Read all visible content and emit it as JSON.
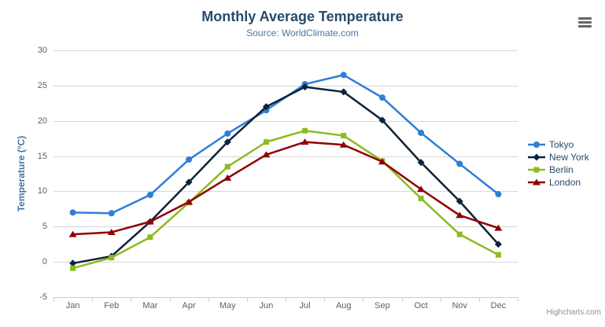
{
  "icons": {
    "export_menu": "hamburger-icon"
  },
  "credits": {
    "label": "Highcharts.com"
  },
  "colors": {
    "title": "#274b6d",
    "subtitle": "#4d759e",
    "axis_label": "#606060",
    "y_axis_title": "#4572a7",
    "grid_line": "#d8d8d8",
    "axis_line": "#c0d0e0",
    "legend_text": "#274b6d",
    "credits_text": "#909090",
    "export_icon": "#666666"
  },
  "chart_data": {
    "type": "line",
    "title": "Monthly Average Temperature",
    "subtitle": "Source: WorldClimate.com",
    "categories": [
      "Jan",
      "Feb",
      "Mar",
      "Apr",
      "May",
      "Jun",
      "Jul",
      "Aug",
      "Sep",
      "Oct",
      "Nov",
      "Dec"
    ],
    "xlabel": "",
    "ylabel": "Temperature (°C)",
    "ylim": [
      -5,
      30
    ],
    "ytick_interval": 5,
    "yticks": [
      -5,
      0,
      5,
      10,
      15,
      20,
      25,
      30
    ],
    "grid": true,
    "legend_position": "right",
    "series": [
      {
        "name": "Tokyo",
        "color": "#2f7ed8",
        "marker": "circle",
        "values": [
          7.0,
          6.9,
          9.5,
          14.5,
          18.2,
          21.5,
          25.2,
          26.5,
          23.3,
          18.3,
          13.9,
          9.6
        ]
      },
      {
        "name": "New York",
        "color": "#0d233a",
        "marker": "diamond",
        "values": [
          -0.2,
          0.8,
          5.7,
          11.3,
          17.0,
          22.0,
          24.8,
          24.1,
          20.1,
          14.1,
          8.6,
          2.5
        ]
      },
      {
        "name": "Berlin",
        "color": "#8bbc21",
        "marker": "square",
        "values": [
          -0.9,
          0.6,
          3.5,
          8.4,
          13.5,
          17.0,
          18.6,
          17.9,
          14.3,
          9.0,
          3.9,
          1.0
        ]
      },
      {
        "name": "London",
        "color": "#910000",
        "marker": "triangle",
        "values": [
          3.9,
          4.2,
          5.7,
          8.5,
          11.9,
          15.2,
          17.0,
          16.6,
          14.2,
          10.3,
          6.6,
          4.8
        ]
      }
    ]
  }
}
